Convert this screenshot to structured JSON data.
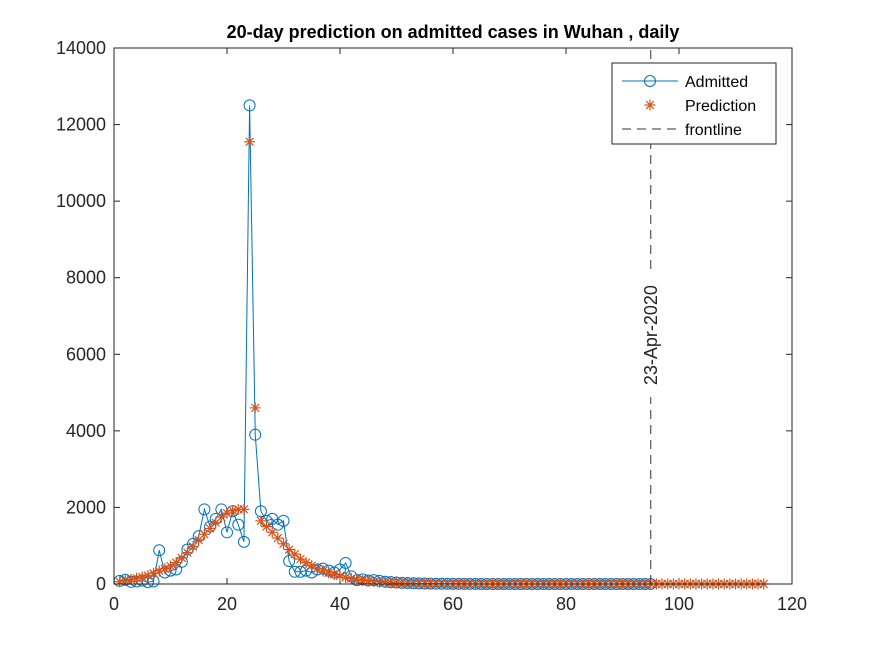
{
  "chart_data": {
    "type": "line",
    "title": "20-day prediction on admitted cases in Wuhan , daily",
    "xlabel": "",
    "ylabel": "",
    "xlim": [
      0,
      120
    ],
    "ylim": [
      0,
      14000
    ],
    "xticks": [
      0,
      20,
      40,
      60,
      80,
      100,
      120
    ],
    "yticks": [
      0,
      2000,
      4000,
      6000,
      8000,
      10000,
      12000,
      14000
    ],
    "xtick_labels": [
      "0",
      "20",
      "40",
      "60",
      "80",
      "100",
      "120"
    ],
    "ytick_labels": [
      "0",
      "2000",
      "4000",
      "6000",
      "8000",
      "10000",
      "12000",
      "14000"
    ],
    "grid": false,
    "legend_position": "top-right",
    "series": [
      {
        "name": "Admitted",
        "style": "line-circle",
        "color": "#0072BD",
        "x": [
          1,
          2,
          3,
          4,
          5,
          6,
          7,
          8,
          9,
          10,
          11,
          12,
          13,
          14,
          15,
          16,
          17,
          18,
          19,
          20,
          21,
          22,
          23,
          24,
          25,
          26,
          27,
          28,
          29,
          30,
          31,
          32,
          33,
          34,
          35,
          36,
          37,
          38,
          39,
          40,
          41,
          42,
          43,
          44,
          45,
          46,
          47,
          48,
          49,
          50,
          51,
          52,
          53,
          54,
          55,
          56,
          57,
          58,
          59,
          60,
          61,
          62,
          63,
          64,
          65,
          66,
          67,
          68,
          69,
          70,
          71,
          72,
          73,
          74,
          75,
          76,
          77,
          78,
          79,
          80,
          81,
          82,
          83,
          84,
          85,
          86,
          87,
          88,
          89,
          90,
          91,
          92,
          93,
          94,
          95
        ],
        "y": [
          80,
          110,
          60,
          70,
          90,
          50,
          70,
          880,
          300,
          350,
          380,
          580,
          900,
          1050,
          1250,
          1950,
          1500,
          1700,
          1950,
          1350,
          1900,
          1550,
          1100,
          12500,
          3900,
          1900,
          1650,
          1700,
          1550,
          1650,
          600,
          320,
          320,
          350,
          300,
          380,
          400,
          350,
          300,
          380,
          550,
          200,
          100,
          120,
          90,
          100,
          80,
          60,
          50,
          40,
          30,
          25,
          20,
          15,
          12,
          10,
          8,
          6,
          5,
          4,
          3,
          3,
          2,
          2,
          1,
          1,
          1,
          0,
          0,
          0,
          0,
          0,
          0,
          0,
          0,
          0,
          0,
          0,
          0,
          0,
          0,
          0,
          0,
          0,
          0,
          0,
          0,
          0,
          0,
          0,
          0,
          0,
          0,
          0,
          0
        ]
      },
      {
        "name": "Prediction",
        "style": "asterisk",
        "color": "#D95319",
        "x": [
          1,
          2,
          3,
          4,
          5,
          6,
          7,
          8,
          9,
          10,
          11,
          12,
          13,
          14,
          15,
          16,
          17,
          18,
          19,
          20,
          21,
          22,
          23,
          24,
          25,
          26,
          27,
          28,
          29,
          30,
          31,
          32,
          33,
          34,
          35,
          36,
          37,
          38,
          39,
          40,
          41,
          42,
          43,
          44,
          45,
          46,
          47,
          48,
          49,
          50,
          51,
          52,
          53,
          54,
          55,
          56,
          57,
          58,
          59,
          60,
          61,
          62,
          63,
          64,
          65,
          66,
          67,
          68,
          69,
          70,
          71,
          72,
          73,
          74,
          75,
          76,
          77,
          78,
          79,
          80,
          81,
          82,
          83,
          84,
          85,
          86,
          87,
          88,
          89,
          90,
          91,
          92,
          93,
          94,
          95,
          96,
          97,
          98,
          99,
          100,
          101,
          102,
          103,
          104,
          105,
          106,
          107,
          108,
          109,
          110,
          111,
          112,
          113,
          114,
          115
        ],
        "y": [
          60,
          90,
          120,
          150,
          180,
          220,
          280,
          340,
          400,
          470,
          560,
          680,
          820,
          980,
          1150,
          1300,
          1450,
          1600,
          1750,
          1850,
          1920,
          1950,
          1950,
          11550,
          4600,
          1650,
          1500,
          1350,
          1200,
          1050,
          900,
          780,
          650,
          560,
          480,
          400,
          340,
          290,
          250,
          210,
          170,
          140,
          110,
          90,
          75,
          60,
          50,
          40,
          32,
          25,
          20,
          15,
          12,
          10,
          8,
          6,
          5,
          4,
          3,
          2,
          2,
          1,
          1,
          1,
          0,
          0,
          0,
          0,
          0,
          0,
          0,
          0,
          0,
          0,
          0,
          0,
          0,
          0,
          0,
          0,
          0,
          0,
          0,
          0,
          0,
          0,
          0,
          0,
          0,
          0,
          0,
          0,
          0,
          0,
          0,
          0,
          0,
          0,
          0,
          0,
          0,
          0,
          0,
          0,
          0,
          0,
          0,
          0,
          0,
          0,
          0,
          0,
          0,
          0,
          0
        ]
      },
      {
        "name": "frontline",
        "style": "dashed-vertical",
        "color": "#333333",
        "x": [
          95,
          95
        ],
        "y": [
          0,
          14000
        ]
      }
    ],
    "annotations": [
      {
        "text": "23-Apr-2020",
        "x": 95,
        "y": 6500,
        "rotation": -90
      }
    ]
  }
}
